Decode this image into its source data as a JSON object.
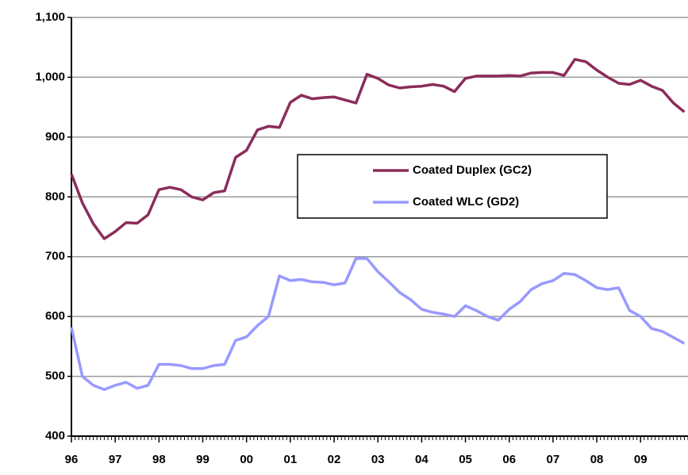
{
  "chart_data": {
    "type": "line",
    "x": [
      0,
      3,
      6,
      9,
      12,
      15,
      18,
      21,
      24,
      27,
      30,
      33,
      36,
      39,
      42,
      45,
      48,
      51,
      54,
      57,
      60,
      63,
      66,
      69,
      72,
      75,
      78,
      81,
      84,
      87,
      90,
      93,
      96,
      99,
      102,
      105,
      108,
      111,
      114,
      117,
      120,
      123,
      126,
      129,
      132,
      135,
      138,
      141,
      144,
      147,
      150,
      153,
      156,
      159,
      162,
      165,
      168
    ],
    "series": [
      {
        "name": "Coated Duplex (GC2)",
        "color": "#8b2d5a",
        "values": [
          838,
          790,
          755,
          730,
          742,
          757,
          756,
          770,
          812,
          816,
          812,
          800,
          795,
          807,
          810,
          866,
          878,
          912,
          918,
          916,
          958,
          970,
          964,
          966,
          967,
          962,
          957,
          1005,
          998,
          987,
          982,
          984,
          985,
          988,
          985,
          976,
          998,
          1002,
          1002,
          1002,
          1003,
          1002,
          1007,
          1008,
          1008,
          1003,
          1030,
          1026,
          1012,
          1000,
          990,
          988,
          995,
          985,
          978,
          957,
          942
        ]
      },
      {
        "name": "Coated WLC (GD2)",
        "color": "#9999ff",
        "values": [
          582,
          500,
          485,
          478,
          485,
          490,
          480,
          485,
          520,
          520,
          518,
          513,
          513,
          518,
          520,
          560,
          566,
          585,
          600,
          668,
          660,
          662,
          658,
          657,
          653,
          656,
          697,
          697,
          675,
          658,
          640,
          628,
          612,
          607,
          604,
          600,
          618,
          610,
          600,
          594,
          612,
          625,
          645,
          655,
          660,
          672,
          670,
          660,
          648,
          645,
          648,
          610,
          600,
          580,
          575,
          565,
          555
        ]
      }
    ],
    "xlim": [
      0,
      169
    ],
    "xticks": [
      {
        "value": 0,
        "label": "96"
      },
      {
        "value": 12,
        "label": "97"
      },
      {
        "value": 24,
        "label": "98"
      },
      {
        "value": 36,
        "label": "99"
      },
      {
        "value": 48,
        "label": "00"
      },
      {
        "value": 60,
        "label": "01"
      },
      {
        "value": 72,
        "label": "02"
      },
      {
        "value": 84,
        "label": "03"
      },
      {
        "value": 96,
        "label": "04"
      },
      {
        "value": 108,
        "label": "05"
      },
      {
        "value": 120,
        "label": "06"
      },
      {
        "value": 132,
        "label": "07"
      },
      {
        "value": 144,
        "label": "08"
      },
      {
        "value": 156,
        "label": "09"
      }
    ],
    "ylim": [
      400,
      1100
    ],
    "yticks": [
      400,
      500,
      600,
      700,
      800,
      900,
      {
        "value": 1000,
        "label": "1,000"
      },
      {
        "value": 1100,
        "label": "1,100"
      }
    ],
    "grid": true
  }
}
